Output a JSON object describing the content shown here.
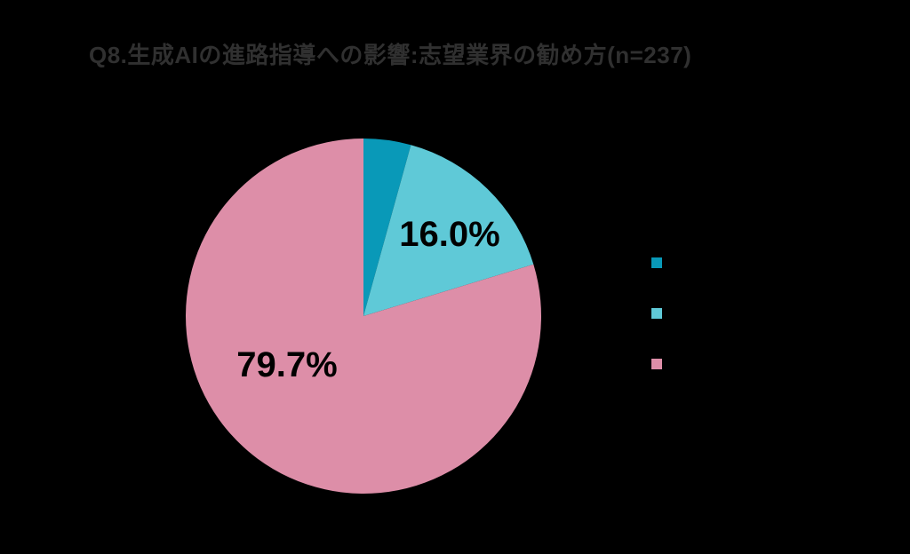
{
  "page": {
    "background_color": "#000000"
  },
  "chart_data": {
    "type": "pie",
    "title": "Q8.生成AIの進路指導への影響:志望業界の勧め方(n=237)",
    "title_color": "#303030",
    "sample_size_shown_in_title": "n=237",
    "start_angle_deg": 0,
    "direction": "clockwise",
    "slices": [
      {
        "value": 4.3,
        "color": "#0999b8",
        "label": ""
      },
      {
        "value": 16.0,
        "color": "#5fc9d7",
        "label": "16.0%"
      },
      {
        "value": 79.7,
        "color": "#dd8ea8",
        "label": "79.7%"
      }
    ],
    "data_label_color": "#000000",
    "legend": {
      "position": "right",
      "labels_visible": false,
      "swatch_colors": [
        "#0999b8",
        "#5fc9d7",
        "#dd8ea8"
      ]
    }
  }
}
